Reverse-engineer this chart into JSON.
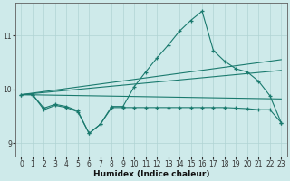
{
  "xlabel": "Humidex (Indice chaleur)",
  "bg_color": "#ceeaea",
  "grid_color": "#b0d4d4",
  "line_color": "#1a7a6e",
  "xlim": [
    -0.5,
    23.5
  ],
  "ylim": [
    8.75,
    11.6
  ],
  "yticks": [
    9,
    10,
    11
  ],
  "xticks": [
    0,
    1,
    2,
    3,
    4,
    5,
    6,
    7,
    8,
    9,
    10,
    11,
    12,
    13,
    14,
    15,
    16,
    17,
    18,
    19,
    20,
    21,
    22,
    23
  ],
  "y_main": [
    9.9,
    9.9,
    9.65,
    9.72,
    9.68,
    9.6,
    9.18,
    9.35,
    9.68,
    9.68,
    10.05,
    10.32,
    10.58,
    10.82,
    11.08,
    11.28,
    11.45,
    10.72,
    10.52,
    10.38,
    10.32,
    10.15,
    9.88,
    9.38
  ],
  "y_bottom": [
    9.9,
    9.9,
    9.62,
    9.7,
    9.66,
    9.58,
    9.18,
    9.35,
    9.66,
    9.66,
    9.66,
    9.66,
    9.66,
    9.66,
    9.66,
    9.66,
    9.66,
    9.66,
    9.66,
    9.65,
    9.64,
    9.62,
    9.62,
    9.38
  ],
  "straight_lines": [
    {
      "x0": 0,
      "y0": 9.9,
      "x1": 23,
      "y1": 10.55
    },
    {
      "x0": 0,
      "y0": 9.9,
      "x1": 23,
      "y1": 10.35
    },
    {
      "x0": 0,
      "y0": 9.9,
      "x1": 23,
      "y1": 9.82
    }
  ]
}
